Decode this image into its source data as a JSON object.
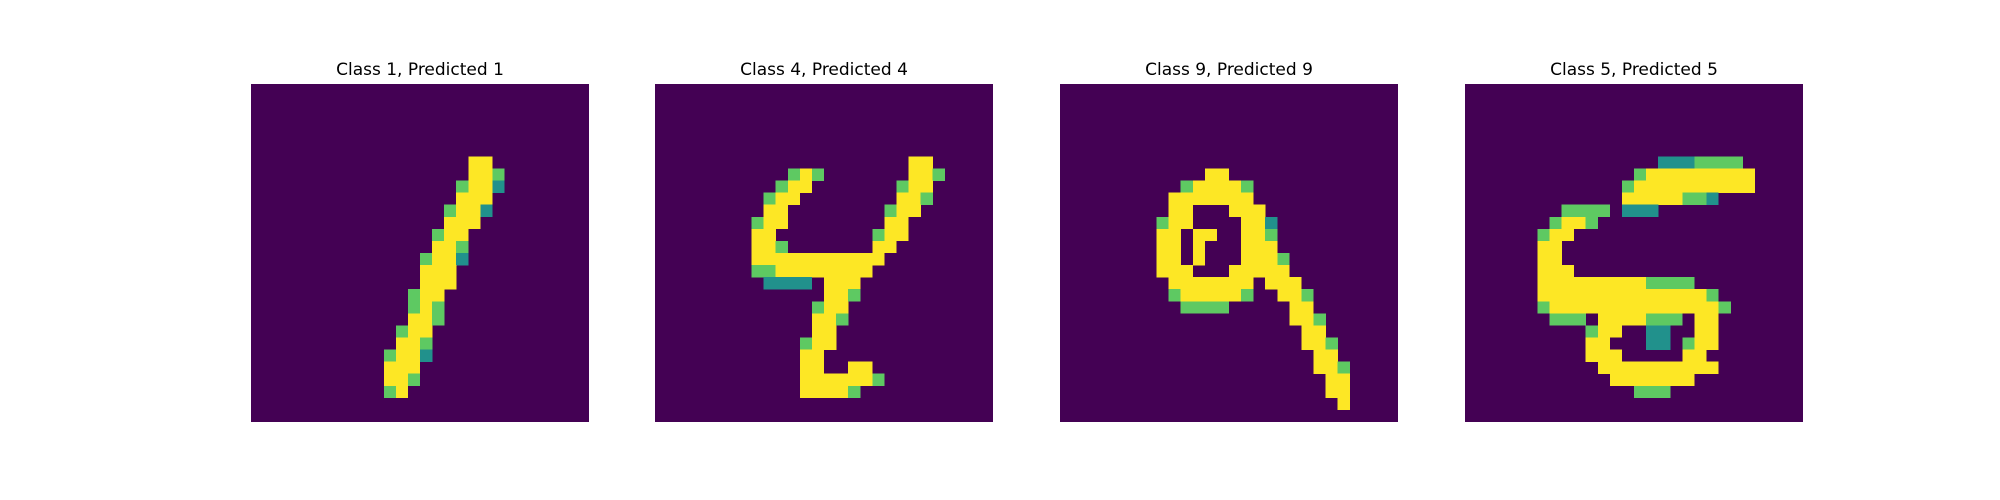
{
  "colors": {
    "background": "#440154",
    "palette": [
      "#440154",
      "#3b528b",
      "#21918c",
      "#5ec962",
      "#fde725"
    ]
  },
  "panels": [
    {
      "title": "Class 1, Predicted 1",
      "rows": [
        "............................",
        "............................",
        "............................",
        "............................",
        "............................",
        "............................",
        "..................44........",
        "..................443.......",
        ".................3442.......",
        ".................444........",
        "................3442........",
        "................444.........",
        "...............344..........",
        "...............443..........",
        "..............3442..........",
        "..............444...........",
        "..............444...........",
        ".............344............",
        ".............343............",
        ".............443............",
        "............344.............",
        "............443.............",
        "...........3442.............",
        "...........444..............",
        "...........443..............",
        "...........34...............",
        "............................",
        "............................"
      ]
    },
    {
      "title": "Class 4, Predicted 4",
      "rows": [
        "............................",
        "............................",
        "............................",
        "............................",
        "............................",
        "............................",
        ".....................44.....",
        "...........343.......443....",
        "..........344.......344.....",
        ".........344........443.....",
        ".........44........344......",
        "........344........44.......",
        "........44........344.......",
        "........443.......44........",
        "........44444444444.........",
        "........3344444444..........",
        ".........2222.444...........",
        "..............443...........",
        ".............344............",
        ".............443............",
        ".............44.............",
        "............344.............",
        "............44..............",
        "............44..44..........",
        "............4444443.........",
        "............44443...........",
        "............................",
        "............................"
      ]
    },
    {
      "title": "Class 9, Predicted 9",
      "rows": [
        "............................",
        "............................",
        "............................",
        "............................",
        "............................",
        "............................",
        "............................",
        "............44..............",
        "..........344443............",
        ".........4444444............",
        ".........44...444...........",
        "........344....442..........",
        "........44.44..443..........",
        "........44.4...444..........",
        "........44.4...4443.........",
        "........444...44444.........",
        ".........4444444.444........",
        ".........3444443..443.......",
        "..........3333.....44.......",
        "...................443......",
        "....................44......",
        "....................443.....",
        ".....................44.....",
        ".....................443....",
        "......................44....",
        "......................44....",
        ".......................4....",
        "............................"
      ]
    },
    {
      "title": "Class 5, Predicted 5",
      "rows": [
        "............................",
        "............................",
        "............................",
        "............................",
        "............................",
        "............................",
        "................2223333.....",
        "..............3444444444....",
        ".............34444444444....",
        ".............44444332.......",
        "........3333.222............",
        ".......3443.................",
        "......344...................",
        "......44....................",
        "......44....................",
        "......444...................",
        "......4444444443333.........",
        "......444444444444443.......",
        "......3444444444444443......",
        ".......333.4444333.44.......",
        "..........344..22..44.......",
        "..........44...22.344.......",
        "..........444.....44........",
        "...........4444444444.......",
        "............4444444.........",
        "..............333...........",
        "............................",
        "............................"
      ]
    }
  ]
}
